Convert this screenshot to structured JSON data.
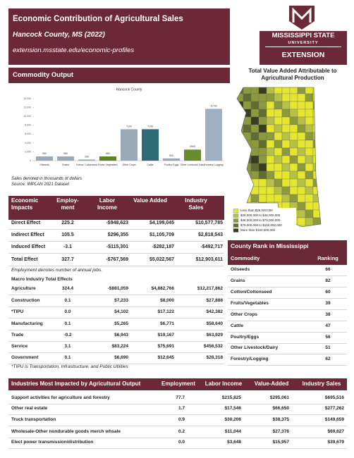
{
  "header": {
    "title": "Economic Contribution of Agricultural Sales",
    "subtitle": "Hancock County, MS (2022)",
    "url": "extension.msstate.edu/economic-profiles"
  },
  "logo": {
    "name": "MISSISSIPPI STATE",
    "sub": "UNIVERSITY",
    "unit": "EXTENSION"
  },
  "map": {
    "title": "Total Value Added Attributable to Agricultural Production",
    "legend": [
      "Less than $28,000,000",
      "$28,000,000 to $48,000,000",
      "$48,000,000 to $79,000,000",
      "$79,000,000 to $150,000,000",
      "More than $150,000,000"
    ],
    "colors": [
      "#e4e630",
      "#b7c047",
      "#8d9a3c",
      "#5f6d33",
      "#383d22"
    ]
  },
  "commodity_heading": "Commodity Output",
  "chart_data": {
    "type": "bar",
    "title": "Hancock County",
    "categories": [
      "Oilseeds",
      "Grains",
      "Cotton/ Cottonseed",
      "Fruits/ Vegetables",
      "Other Crops",
      "Cattle",
      "Poultry/ Eggs",
      "Other Livestock/ Dairy",
      "Forestry/ Logging"
    ],
    "values": [
      950,
      950,
      250,
      950,
      7100,
      7100,
      500,
      2500,
      11700
    ],
    "colors": [
      "#9aa9b8",
      "#9aa9b8",
      "#9aa9b8",
      "#5f7f2a",
      "#9aa9b8",
      "#2e6a74",
      "#9aa9b8",
      "#6a8a30",
      "#9fb0c2"
    ],
    "ylim": [
      0,
      14000
    ],
    "yticks": [
      0,
      {
        "value": 2000,
        "label": "2,000"
      },
      {
        "value": 4000,
        "label": "4,000"
      },
      {
        "value": 6000,
        "label": "6,000"
      },
      {
        "value": 8000,
        "label": "8,000"
      },
      {
        "value": 10000,
        "label": "10,000"
      },
      {
        "value": 12000,
        "label": "12,000"
      },
      {
        "value": 14000,
        "label": "14,000"
      }
    ]
  },
  "chart_notes": [
    "Sales denoted in thousands of dollars",
    "Source: IMPLAN 2021 Dataset"
  ],
  "impacts": {
    "columns": [
      "Economic Impacts",
      "Employ-ment",
      "Labor Income",
      "Value Added",
      "Industry Sales"
    ],
    "rows": [
      [
        "Direct Effect",
        "225.2",
        "-$948,623",
        "$4,199,045",
        "$10,577,785"
      ],
      [
        "Indirect Effect",
        "105.5",
        "$296,355",
        "$1,105,709",
        "$2,818,543"
      ],
      [
        "Induced Effect",
        "-3.1",
        "-$115,301",
        "-$282,187",
        "-$492,717"
      ],
      [
        "Total Effect",
        "327.7",
        "-$767,569",
        "$5,022,567",
        "$12,903,611"
      ]
    ],
    "note": "Employment denotes number of annual jobs.",
    "macro_title": "Macro Industry Total Effects",
    "macro_rows": [
      [
        "Agriculture",
        "324.4",
        "-$881,059",
        "$4,882,766",
        "$12,217,862"
      ],
      [
        "Construction",
        "0.1",
        "$7,233",
        "$8,000",
        "$27,888"
      ],
      [
        "*TIPU",
        "0.0",
        "$4,102",
        "$17,122",
        "$42,382"
      ],
      [
        "Manufacturing",
        "0.1",
        "$5,265",
        "$6,771",
        "$58,640"
      ],
      [
        "Trade",
        "-0.2",
        "$6,943",
        "$19,167",
        "$63,929"
      ],
      [
        "Service",
        "3.1",
        "$83,224",
        "$75,691",
        "$456,532"
      ],
      [
        "Government",
        "0.1",
        "$6,690",
        "$12,645",
        "$28,318"
      ]
    ],
    "macro_note": "*TIPU is Transportation, Infrastructure, and Public Utilities"
  },
  "county_rank": {
    "title": "County Rank in Mississippi",
    "columns": [
      "Commodity",
      "Ranking"
    ],
    "rows": [
      [
        "Oilseeds",
        "66"
      ],
      [
        "Grains",
        "82"
      ],
      [
        "Cotton/Cottonseed",
        "60"
      ],
      [
        "Fruits/Vegetables",
        "39"
      ],
      [
        "Other Crops",
        "38"
      ],
      [
        "Cattle",
        "47"
      ],
      [
        "Poultry/Eggs",
        "56"
      ],
      [
        "Other Livestock/Dairy",
        "51"
      ],
      [
        "Forestry/Logging",
        "62"
      ]
    ]
  },
  "industries": {
    "columns": [
      "Industries Most Impacted by Agricultural Output",
      "Employment",
      "Labor Income",
      "Value-Added",
      "Industry Sales"
    ],
    "rows": [
      [
        "Support activities for agriculture and forestry",
        "77.7",
        "$215,825",
        "$295,061",
        "$695,516"
      ],
      [
        "Other real estate",
        "1.7",
        "$17,546",
        "$66,650",
        "$277,262"
      ],
      [
        "Truck transportation",
        "0.9",
        "$30,206",
        "$38,375",
        "$149,659"
      ],
      [
        "Wholesale-Other nondurable goods merch whsale",
        "0.2",
        "$11,044",
        "$27,376",
        "$69,627"
      ],
      [
        "Elect power transmission/distribution",
        "0.0",
        "$3,648",
        "$15,957",
        "$39,679"
      ]
    ]
  }
}
